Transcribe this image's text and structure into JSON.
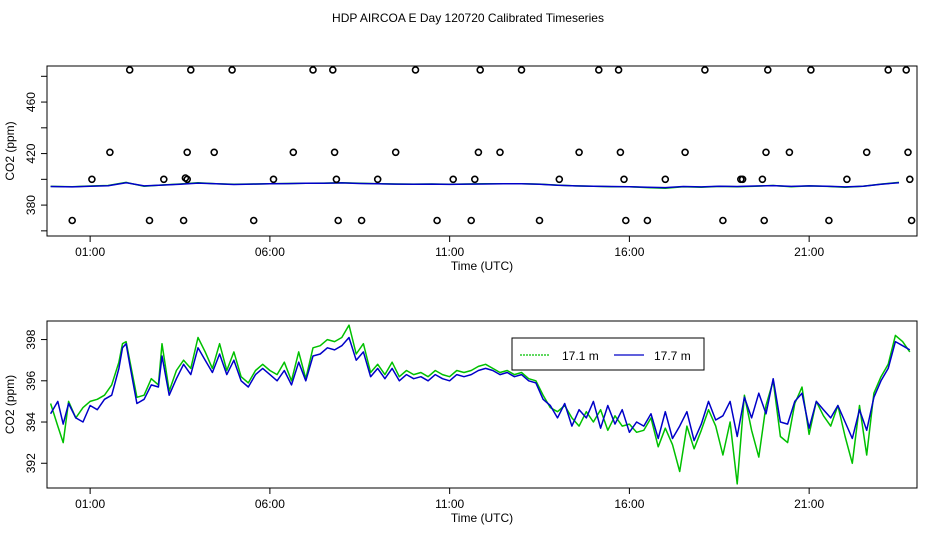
{
  "figure_title": "HDP AIRCOA E  Day 120720  Calibrated Timeseries",
  "colors": {
    "green": "#00c000",
    "blue": "#0000c8",
    "axis": "#000000"
  },
  "chart_data": [
    {
      "type": "scatter+line",
      "xlabel": "Time (UTC)",
      "ylabel": "CO2 (ppm)",
      "xlim": [
        -0.2,
        24.0
      ],
      "ylim": [
        356,
        488
      ],
      "x_ticks": [
        1,
        6,
        11,
        16,
        21
      ],
      "x_tick_labels": [
        "01:00",
        "06:00",
        "11:00",
        "16:00",
        "21:00"
      ],
      "y_ticks": [
        380,
        420,
        460
      ],
      "y_tick_labels": [
        "380",
        "420",
        "460"
      ],
      "y_minor_ticks": [
        360,
        380,
        400,
        420,
        440,
        460,
        480
      ],
      "points": [
        [
          0.5,
          368
        ],
        [
          1.05,
          400
        ],
        [
          1.55,
          421
        ],
        [
          2.1,
          485
        ],
        [
          2.65,
          368
        ],
        [
          3.05,
          400
        ],
        [
          3.6,
          368
        ],
        [
          3.65,
          401
        ],
        [
          3.7,
          400
        ],
        [
          3.7,
          421
        ],
        [
          3.8,
          485
        ],
        [
          4.45,
          421
        ],
        [
          4.95,
          485
        ],
        [
          5.55,
          368
        ],
        [
          6.1,
          400
        ],
        [
          6.65,
          421
        ],
        [
          7.2,
          485
        ],
        [
          7.75,
          485
        ],
        [
          7.8,
          421
        ],
        [
          7.85,
          400
        ],
        [
          7.9,
          368
        ],
        [
          8.55,
          368
        ],
        [
          9.0,
          400
        ],
        [
          9.5,
          421
        ],
        [
          10.05,
          485
        ],
        [
          10.65,
          368
        ],
        [
          11.1,
          400
        ],
        [
          11.6,
          368
        ],
        [
          11.7,
          400
        ],
        [
          11.8,
          421
        ],
        [
          11.85,
          485
        ],
        [
          12.4,
          421
        ],
        [
          13.0,
          485
        ],
        [
          13.5,
          368
        ],
        [
          14.05,
          400
        ],
        [
          14.6,
          421
        ],
        [
          15.15,
          485
        ],
        [
          15.7,
          485
        ],
        [
          15.75,
          421
        ],
        [
          15.85,
          400
        ],
        [
          15.9,
          368
        ],
        [
          16.5,
          368
        ],
        [
          17.0,
          400
        ],
        [
          17.55,
          421
        ],
        [
          18.1,
          485
        ],
        [
          18.6,
          368
        ],
        [
          19.1,
          400
        ],
        [
          19.15,
          400
        ],
        [
          19.7,
          400
        ],
        [
          19.75,
          368
        ],
        [
          19.8,
          421
        ],
        [
          19.85,
          485
        ],
        [
          20.45,
          421
        ],
        [
          21.05,
          485
        ],
        [
          21.55,
          368
        ],
        [
          22.05,
          400
        ],
        [
          22.6,
          421
        ],
        [
          23.2,
          485
        ],
        [
          23.7,
          485
        ],
        [
          23.75,
          421
        ],
        [
          23.8,
          400
        ],
        [
          23.85,
          368
        ]
      ],
      "series": [
        {
          "name": "17.1 m",
          "color": "#00c000",
          "x": [
            -0.1,
            0.5,
            1.0,
            1.5,
            2.0,
            2.5,
            3.0,
            3.5,
            4.0,
            4.5,
            5.0,
            5.5,
            6.0,
            6.5,
            7.0,
            7.5,
            8.0,
            8.5,
            9.0,
            9.5,
            10.0,
            10.5,
            11.0,
            11.5,
            12.0,
            12.5,
            13.0,
            13.5,
            14.0,
            14.5,
            15.0,
            15.5,
            16.0,
            16.5,
            17.0,
            17.5,
            18.0,
            18.5,
            19.0,
            19.5,
            20.0,
            20.5,
            21.0,
            21.5,
            22.0,
            22.5,
            23.0,
            23.5
          ],
          "y": [
            394.5,
            394.2,
            394.8,
            395.2,
            397.6,
            394.6,
            395.6,
            396.4,
            397.4,
            396.6,
            396.2,
            396.4,
            396.6,
            396.8,
            397.0,
            397.1,
            397.4,
            397.0,
            396.6,
            396.4,
            396.3,
            396.4,
            396.2,
            396.4,
            396.5,
            396.6,
            396.6,
            396.3,
            395.5,
            394.9,
            394.6,
            394.3,
            394.2,
            393.6,
            393.1,
            394.2,
            393.9,
            394.5,
            394.3,
            394.7,
            395.2,
            394.3,
            394.9,
            394.5,
            393.8,
            394.6,
            396.3,
            397.6
          ]
        },
        {
          "name": "17.7 m",
          "color": "#0000c8",
          "x": [
            -0.1,
            0.5,
            1.0,
            1.5,
            2.0,
            2.5,
            3.0,
            3.5,
            4.0,
            4.5,
            5.0,
            5.5,
            6.0,
            6.5,
            7.0,
            7.5,
            8.0,
            8.5,
            9.0,
            9.5,
            10.0,
            10.5,
            11.0,
            11.5,
            12.0,
            12.5,
            13.0,
            13.5,
            14.0,
            14.5,
            15.0,
            15.5,
            16.0,
            16.5,
            17.0,
            17.5,
            18.0,
            18.5,
            19.0,
            19.5,
            20.0,
            20.5,
            21.0,
            21.5,
            22.0,
            22.5,
            23.0,
            23.5
          ],
          "y": [
            394.4,
            394.1,
            394.6,
            395.0,
            397.4,
            394.9,
            395.5,
            396.2,
            397.1,
            396.5,
            396.0,
            396.3,
            396.5,
            396.7,
            396.9,
            397.0,
            397.2,
            396.8,
            396.5,
            396.3,
            396.2,
            396.3,
            396.1,
            396.3,
            396.4,
            396.5,
            396.5,
            396.2,
            395.4,
            394.9,
            394.6,
            394.4,
            394.3,
            393.9,
            393.6,
            394.4,
            394.1,
            394.6,
            394.4,
            394.8,
            395.1,
            394.5,
            394.9,
            394.6,
            394.1,
            394.7,
            396.2,
            397.4
          ]
        }
      ]
    },
    {
      "type": "line",
      "xlabel": "Time (UTC)",
      "ylabel": "CO2 (ppm)",
      "xlim": [
        -0.2,
        24.0
      ],
      "ylim": [
        390.8,
        398.9
      ],
      "x_ticks": [
        1,
        6,
        11,
        16,
        21
      ],
      "x_tick_labels": [
        "01:00",
        "06:00",
        "11:00",
        "16:00",
        "21:00"
      ],
      "y_ticks": [
        392,
        394,
        396,
        398
      ],
      "y_tick_labels": [
        "392",
        "394",
        "396",
        "398"
      ],
      "legend": {
        "placement": "top-right",
        "entries": [
          "17.1 m",
          "17.7 m"
        ]
      },
      "series": [
        {
          "name": "17.1 m",
          "color": "#00c000",
          "x": [
            -0.1,
            0.1,
            0.25,
            0.4,
            0.6,
            0.8,
            1.0,
            1.2,
            1.4,
            1.6,
            1.8,
            1.9,
            2.0,
            2.1,
            2.3,
            2.5,
            2.7,
            2.9,
            3.0,
            3.2,
            3.4,
            3.6,
            3.8,
            4.0,
            4.2,
            4.4,
            4.6,
            4.8,
            5.0,
            5.2,
            5.4,
            5.6,
            5.8,
            6.0,
            6.2,
            6.4,
            6.6,
            6.8,
            7.0,
            7.2,
            7.4,
            7.6,
            7.8,
            8.0,
            8.2,
            8.4,
            8.6,
            8.8,
            9.0,
            9.2,
            9.4,
            9.6,
            9.8,
            10.0,
            10.2,
            10.4,
            10.6,
            10.8,
            11.0,
            11.2,
            11.4,
            11.6,
            11.8,
            12.0,
            12.2,
            12.4,
            12.6,
            12.8,
            13.0,
            13.2,
            13.4,
            13.6,
            13.8,
            14.0,
            14.2,
            14.4,
            14.6,
            14.8,
            15.0,
            15.2,
            15.4,
            15.6,
            15.8,
            16.0,
            16.2,
            16.4,
            16.6,
            16.8,
            17.0,
            17.2,
            17.4,
            17.6,
            17.8,
            18.0,
            18.2,
            18.4,
            18.6,
            18.8,
            19.0,
            19.2,
            19.4,
            19.6,
            19.8,
            20.0,
            20.2,
            20.4,
            20.6,
            20.8,
            21.0,
            21.2,
            21.4,
            21.6,
            21.8,
            22.0,
            22.2,
            22.4,
            22.6,
            22.8,
            23.0,
            23.2,
            23.4,
            23.6,
            23.8
          ],
          "y": [
            394.9,
            393.8,
            393.0,
            395.0,
            394.2,
            394.7,
            395.0,
            395.1,
            395.3,
            395.8,
            396.9,
            397.8,
            397.9,
            397.0,
            395.2,
            395.3,
            396.1,
            395.8,
            397.8,
            395.5,
            396.5,
            397.0,
            396.6,
            398.1,
            397.4,
            396.6,
            397.8,
            396.5,
            397.4,
            396.2,
            395.9,
            396.5,
            396.8,
            396.5,
            396.3,
            396.9,
            396.0,
            397.4,
            396.1,
            397.6,
            397.7,
            398.0,
            397.9,
            398.1,
            398.7,
            397.3,
            397.8,
            396.4,
            396.8,
            396.3,
            396.9,
            396.2,
            396.5,
            396.3,
            396.4,
            396.2,
            396.5,
            396.3,
            396.2,
            396.5,
            396.4,
            396.5,
            396.7,
            396.8,
            396.6,
            396.4,
            396.5,
            396.3,
            396.4,
            396.1,
            396.0,
            395.3,
            394.7,
            394.5,
            394.8,
            394.2,
            393.8,
            394.5,
            394.0,
            394.6,
            393.6,
            394.3,
            393.8,
            393.9,
            393.5,
            393.6,
            394.2,
            392.8,
            393.7,
            392.9,
            391.6,
            393.8,
            392.7,
            393.6,
            394.6,
            393.8,
            392.4,
            394.0,
            391.0,
            395.3,
            393.6,
            392.3,
            394.8,
            396.0,
            393.3,
            393.0,
            394.9,
            395.7,
            393.4,
            395.0,
            394.3,
            393.8,
            394.8,
            393.3,
            392.0,
            394.8,
            392.4,
            395.4,
            396.2,
            396.8,
            398.2,
            397.9,
            397.4
          ]
        },
        {
          "name": "17.7 m",
          "color": "#0000c8",
          "x": [
            -0.1,
            0.1,
            0.25,
            0.4,
            0.6,
            0.8,
            1.0,
            1.2,
            1.4,
            1.6,
            1.8,
            1.9,
            2.0,
            2.1,
            2.3,
            2.5,
            2.7,
            2.9,
            3.0,
            3.2,
            3.4,
            3.6,
            3.8,
            4.0,
            4.2,
            4.4,
            4.6,
            4.8,
            5.0,
            5.2,
            5.4,
            5.6,
            5.8,
            6.0,
            6.2,
            6.4,
            6.6,
            6.8,
            7.0,
            7.2,
            7.4,
            7.6,
            7.8,
            8.0,
            8.2,
            8.4,
            8.6,
            8.8,
            9.0,
            9.2,
            9.4,
            9.6,
            9.8,
            10.0,
            10.2,
            10.4,
            10.6,
            10.8,
            11.0,
            11.2,
            11.4,
            11.6,
            11.8,
            12.0,
            12.2,
            12.4,
            12.6,
            12.8,
            13.0,
            13.2,
            13.4,
            13.6,
            13.8,
            14.0,
            14.2,
            14.4,
            14.6,
            14.8,
            15.0,
            15.2,
            15.4,
            15.6,
            15.8,
            16.0,
            16.2,
            16.4,
            16.6,
            16.8,
            17.0,
            17.2,
            17.4,
            17.6,
            17.8,
            18.0,
            18.2,
            18.4,
            18.6,
            18.8,
            19.0,
            19.2,
            19.4,
            19.6,
            19.8,
            20.0,
            20.2,
            20.4,
            20.6,
            20.8,
            21.0,
            21.2,
            21.4,
            21.6,
            21.8,
            22.0,
            22.2,
            22.4,
            22.6,
            22.8,
            23.0,
            23.2,
            23.4,
            23.6,
            23.8
          ],
          "y": [
            394.4,
            395.0,
            393.9,
            394.9,
            394.2,
            394.0,
            394.8,
            394.6,
            395.1,
            395.3,
            396.6,
            397.6,
            397.8,
            396.8,
            394.9,
            395.1,
            395.8,
            395.7,
            397.2,
            395.3,
            396.1,
            396.8,
            396.3,
            397.6,
            397.0,
            396.4,
            397.3,
            396.3,
            397.0,
            396.0,
            395.7,
            396.3,
            396.6,
            396.3,
            396.0,
            396.5,
            395.8,
            396.9,
            396.0,
            397.2,
            397.3,
            397.6,
            397.5,
            397.7,
            398.1,
            397.0,
            397.4,
            396.2,
            396.6,
            396.1,
            396.6,
            396.0,
            396.3,
            396.1,
            396.2,
            396.0,
            396.3,
            396.1,
            396.0,
            396.3,
            396.2,
            396.3,
            396.5,
            396.6,
            396.5,
            396.3,
            396.4,
            396.2,
            396.3,
            396.0,
            395.9,
            395.1,
            394.8,
            394.2,
            394.9,
            393.8,
            394.6,
            394.2,
            395.0,
            393.7,
            394.8,
            393.9,
            394.6,
            393.5,
            394.0,
            393.8,
            394.4,
            393.2,
            394.5,
            393.2,
            393.8,
            394.5,
            393.1,
            393.9,
            395.0,
            394.1,
            394.3,
            395.0,
            393.3,
            395.2,
            394.2,
            395.4,
            394.4,
            396.1,
            394.0,
            393.9,
            395.0,
            395.4,
            393.7,
            395.0,
            394.6,
            394.2,
            394.8,
            394.0,
            393.2,
            394.6,
            393.6,
            395.2,
            396.0,
            396.6,
            397.9,
            397.7,
            397.5
          ]
        }
      ]
    }
  ]
}
